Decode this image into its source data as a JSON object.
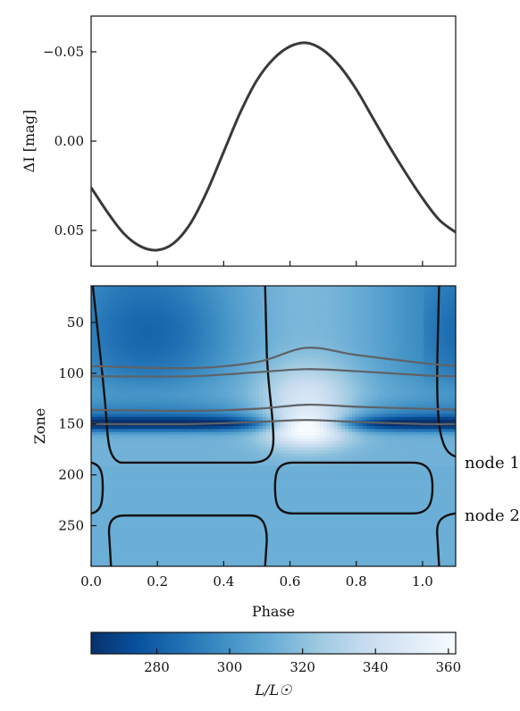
{
  "chart_data": [
    {
      "type": "line",
      "ylabel": "ΔI [mag]",
      "ylim": [
        0.07,
        -0.07
      ],
      "y_inverted": true,
      "xlim": [
        0.0,
        1.1
      ],
      "yticks": [
        -0.05,
        0.0,
        0.05
      ],
      "ytick_labels": [
        "−0.05",
        "0.00",
        "0.05"
      ],
      "xticks": [
        0.0,
        0.2,
        0.4,
        0.6,
        0.8,
        1.0
      ],
      "xtick_labels": [],
      "line_color": "#3a3838",
      "series": [
        {
          "x": [
            0.0,
            0.05,
            0.1,
            0.15,
            0.2,
            0.25,
            0.3,
            0.35,
            0.4,
            0.45,
            0.5,
            0.55,
            0.6,
            0.65,
            0.7,
            0.75,
            0.8,
            0.85,
            0.9,
            0.95,
            1.0,
            1.05,
            1.1
          ],
          "y": [
            0.026,
            0.04,
            0.052,
            0.059,
            0.061,
            0.057,
            0.046,
            0.028,
            0.006,
            -0.016,
            -0.034,
            -0.046,
            -0.053,
            -0.055,
            -0.051,
            -0.042,
            -0.029,
            -0.013,
            0.003,
            0.018,
            0.032,
            0.044,
            0.051
          ]
        }
      ]
    },
    {
      "type": "heatmap",
      "xlabel": "Phase",
      "ylabel": "Zone",
      "xlim": [
        0.0,
        1.1
      ],
      "ylim": [
        290,
        14
      ],
      "xticks": [
        0.0,
        0.2,
        0.4,
        0.6,
        0.8,
        1.0
      ],
      "xtick_labels": [
        "0.0",
        "0.2",
        "0.4",
        "0.6",
        "0.8",
        "1.0"
      ],
      "yticks": [
        50,
        100,
        150,
        200,
        250
      ],
      "ytick_labels": [
        "50",
        "100",
        "150",
        "200",
        "250"
      ],
      "colormap": "Blues_r",
      "colorbar": {
        "label": "L/L☉",
        "vmin": 262,
        "vmax": 362,
        "ticks": [
          280,
          300,
          320,
          340,
          360
        ],
        "tick_labels": [
          "280",
          "300",
          "320",
          "340",
          "360"
        ],
        "colors": [
          "#08306b",
          "#08519c",
          "#2171b5",
          "#4292c6",
          "#6baed6",
          "#9ecae1",
          "#c6dbef",
          "#deebf7",
          "#f7fbff"
        ]
      },
      "zone_lines": [
        {
          "x": [
            0.0,
            0.3,
            0.5,
            0.65,
            0.8,
            1.0,
            1.1
          ],
          "zone": [
            93,
            95,
            89,
            75,
            82,
            90,
            93
          ]
        },
        {
          "x": [
            0.0,
            0.3,
            0.5,
            0.65,
            0.8,
            1.0,
            1.1
          ],
          "zone": [
            103,
            103,
            99,
            96,
            98,
            102,
            103
          ]
        },
        {
          "x": [
            0.0,
            0.3,
            0.5,
            0.65,
            0.8,
            1.0,
            1.1
          ],
          "zone": [
            136,
            137,
            135,
            131,
            133,
            135,
            136
          ]
        },
        {
          "x": [
            0.0,
            0.3,
            0.5,
            0.65,
            0.8,
            1.0,
            1.1
          ],
          "zone": [
            150,
            150,
            148,
            146,
            148,
            150,
            150
          ]
        }
      ],
      "annotations": [
        {
          "text": "node 1",
          "zone": 188
        },
        {
          "text": "node 2",
          "zone": 240
        }
      ]
    }
  ]
}
